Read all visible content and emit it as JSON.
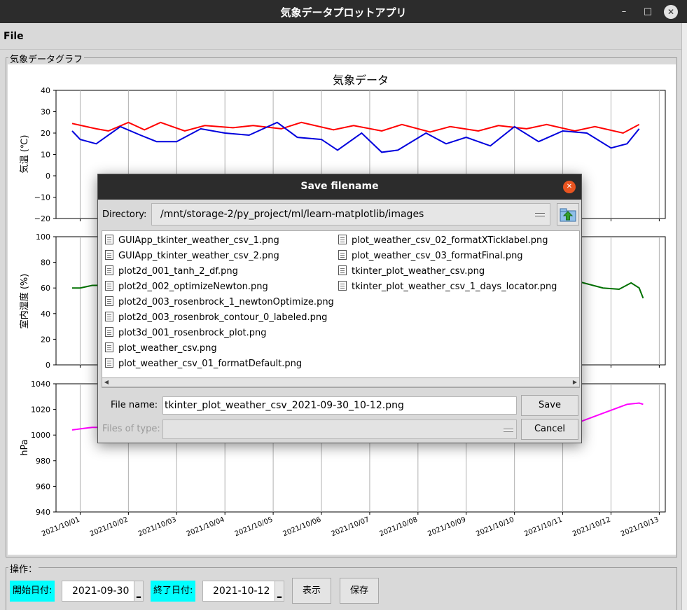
{
  "window": {
    "title": "気象データプロットアプリ",
    "minimize_glyph": "–",
    "maximize_glyph": "□",
    "close_glyph": "✕"
  },
  "menu": {
    "file": "File"
  },
  "graph_frame": {
    "label": "気象データグラフ"
  },
  "chart_data": {
    "type": "line",
    "title": "気象データ",
    "x_tick_labels": [
      "2021/10/01",
      "2021/10/02",
      "2021/10/03",
      "2021/10/04",
      "2021/10/05",
      "2021/10/06",
      "2021/10/07",
      "2021/10/08",
      "2021/10/09",
      "2021/10/10",
      "2021/10/11",
      "2021/10/12",
      "2021/10/13"
    ],
    "x_range": [
      "2021-09-30T12:00",
      "2021-10-13T03:00"
    ],
    "subplots": [
      {
        "ylabel": "気温 (℃)",
        "ylim": [
          -20,
          40
        ],
        "yticks": [
          "40",
          "30",
          "20",
          "10",
          "0",
          "−10",
          "−20"
        ],
        "series": [
          {
            "color": "#ff0000",
            "x": [
              "2021-09-30T20:00",
              "2021-10-01T08:00",
              "2021-10-01T14:00",
              "2021-10-02T00:00",
              "2021-10-02T08:00",
              "2021-10-02T16:00",
              "2021-10-03T04:00",
              "2021-10-03T14:00",
              "2021-10-04T04:00",
              "2021-10-04T14:00",
              "2021-10-05T04:00",
              "2021-10-05T14:00",
              "2021-10-06T06:00",
              "2021-10-06T16:00",
              "2021-10-07T06:00",
              "2021-10-07T16:00",
              "2021-10-08T06:00",
              "2021-10-08T16:00",
              "2021-10-09T06:00",
              "2021-10-09T16:00",
              "2021-10-10T06:00",
              "2021-10-10T16:00",
              "2021-10-11T06:00",
              "2021-10-11T16:00",
              "2021-10-12T06:00",
              "2021-10-12T14:00"
            ],
            "y": [
              24.5,
              22,
              21,
              25,
              21.5,
              25,
              21,
              23.5,
              22.5,
              23.5,
              22,
              25,
              21.5,
              23.5,
              21,
              24,
              20.5,
              23,
              21,
              23.5,
              22,
              24,
              21,
              23,
              20,
              24
            ]
          },
          {
            "color": "#0000dd",
            "x": [
              "2021-09-30T20:00",
              "2021-10-01T00:00",
              "2021-10-01T08:00",
              "2021-10-01T20:00",
              "2021-10-02T06:00",
              "2021-10-02T14:00",
              "2021-10-03T00:00",
              "2021-10-03T12:00",
              "2021-10-04T00:00",
              "2021-10-04T12:00",
              "2021-10-05T02:00",
              "2021-10-05T12:00",
              "2021-10-06T00:00",
              "2021-10-06T08:00",
              "2021-10-06T20:00",
              "2021-10-07T06:00",
              "2021-10-07T14:00",
              "2021-10-08T04:00",
              "2021-10-08T14:00",
              "2021-10-09T00:00",
              "2021-10-09T12:00",
              "2021-10-10T00:00",
              "2021-10-10T12:00",
              "2021-10-11T00:00",
              "2021-10-11T12:00",
              "2021-10-12T00:00",
              "2021-10-12T08:00",
              "2021-10-12T14:00"
            ],
            "y": [
              21,
              17,
              15,
              23,
              19,
              16,
              16,
              22,
              20,
              19,
              25,
              18,
              17,
              12,
              20,
              11,
              12,
              20,
              15,
              18,
              14,
              23,
              16,
              21,
              20,
              13,
              15,
              22
            ]
          }
        ]
      },
      {
        "ylabel": "室内湿度 (%)",
        "ylim": [
          0,
          100
        ],
        "yticks": [
          "100",
          "80",
          "60",
          "40",
          "20",
          "0"
        ],
        "series": [
          {
            "color": "#007000",
            "x": [
              "2021-09-30T20:00",
              "2021-10-01T00:00",
              "2021-10-01T06:00",
              "2021-10-11T08:00",
              "2021-10-11T20:00",
              "2021-10-12T04:00",
              "2021-10-12T10:00",
              "2021-10-12T14:00",
              "2021-10-12T16:00"
            ],
            "y": [
              60,
              60,
              62,
              65,
              60,
              59,
              64,
              60,
              52
            ]
          }
        ]
      },
      {
        "ylabel": "hPa",
        "ylim": [
          940,
          1040
        ],
        "yticks": [
          "1040",
          "1020",
          "1000",
          "980",
          "960",
          "940"
        ],
        "series": [
          {
            "color": "#ff00ff",
            "x": [
              "2021-09-30T20:00",
              "2021-10-01T06:00",
              "2021-10-11T00:00",
              "2021-10-11T08:00",
              "2021-10-11T20:00",
              "2021-10-12T08:00",
              "2021-10-12T14:00",
              "2021-10-12T16:00"
            ],
            "y": [
              1004,
              1006,
              1007,
              1010,
              1017,
              1024,
              1025,
              1024
            ]
          }
        ]
      }
    ]
  },
  "controls": {
    "label": "操作：",
    "start_label": "開始日付:",
    "start_value": "2021-09-30",
    "end_label": "終了日付:",
    "end_value": "2021-10-12",
    "show_button": "表示",
    "save_button": "保存",
    "spin_glyph": "▂"
  },
  "dialog": {
    "title": "Save filename",
    "close_glyph": "✕",
    "directory_label": "Directory:",
    "directory_value": "/mnt/storage-2/py_project/ml/learn-matplotlib/images",
    "files_col1": [
      "GUIApp_tkinter_weather_csv_1.png",
      "GUIApp_tkinter_weather_csv_2.png",
      "plot2d_001_tanh_2_df.png",
      "plot2d_002_optimizeNewton.png",
      "plot2d_003_rosenbrock_1_newtonOptimize.png",
      "plot2d_003_rosenbrok_contour_0_labeled.png",
      "plot3d_001_rosenbrock_plot.png",
      "plot_weather_csv.png",
      "plot_weather_csv_01_formatDefault.png"
    ],
    "files_col2": [
      "plot_weather_csv_02_formatXTicklabel.png",
      "plot_weather_csv_03_formatFinal.png",
      "tkinter_plot_weather_csv.png",
      "tkinter_plot_weather_csv_1_days_locator.png"
    ],
    "scroll_left": "◀",
    "scroll_right": "▶",
    "filename_label": "File name:",
    "filename_value": "tkinter_plot_weather_csv_2021-09-30_10-12.png",
    "filetype_label": "Files of type:",
    "save_label": "Save",
    "cancel_label": "Cancel"
  }
}
